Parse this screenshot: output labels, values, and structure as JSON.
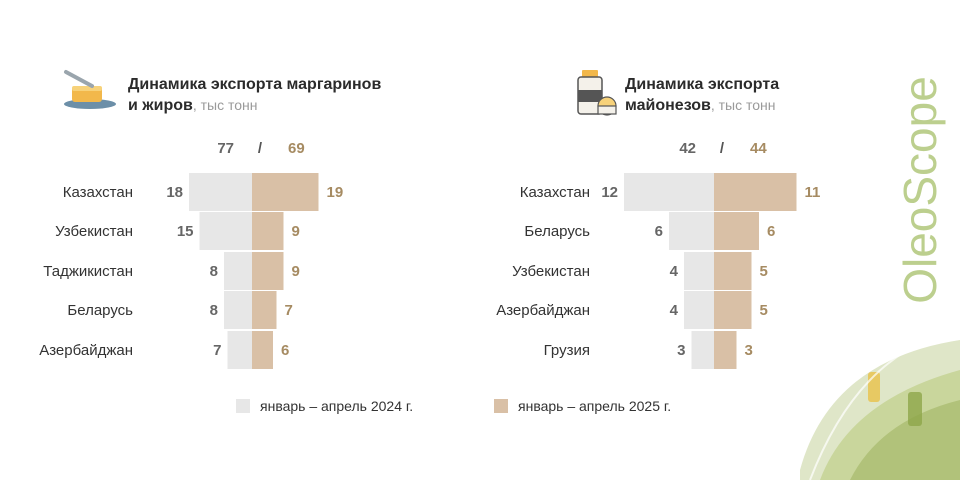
{
  "brand": {
    "name": "OleoScope",
    "color": "#bccf8e"
  },
  "colors": {
    "y2024": "#e7e7e7",
    "y2025": "#d9c0a6",
    "val2024": "#666666",
    "val2025": "#a68b62",
    "labels": "#333333"
  },
  "legend": [
    {
      "label": "январь – апрель 2024 г.",
      "color": "#e7e7e7"
    },
    {
      "label": "январь – апрель 2025 г.",
      "color": "#d9c0a6"
    }
  ],
  "chart_data": [
    {
      "type": "bar",
      "title": "Динамика экспорта маргаринов и жиров",
      "title_line1": "Динамика экспорта маргаринов",
      "title_line2": "и жиров",
      "unit": ", тыс тонн",
      "icon": "butter-dish-icon",
      "totals": {
        "y2024": "77",
        "y2025": "69",
        "separator": "/"
      },
      "categories": [
        "Казахстан",
        "Узбекистан",
        "Таджикистан",
        "Беларусь",
        "Азербайджан"
      ],
      "series": [
        {
          "name": "январь – апрель 2024 г.",
          "values": [
            18,
            15,
            8,
            8,
            7
          ]
        },
        {
          "name": "январь – апрель 2025 г.",
          "values": [
            19,
            9,
            9,
            7,
            6
          ]
        }
      ]
    },
    {
      "type": "bar",
      "title": "Динамика экспорта майонезов",
      "title_line1": "Динамика экспорта",
      "title_line2": "майонезов",
      "unit": ", тыс тонн",
      "icon": "mayonnaise-jar-icon",
      "totals": {
        "y2024": "42",
        "y2025": "44",
        "separator": "/"
      },
      "categories": [
        "Казахстан",
        "Беларусь",
        "Узбекистан",
        "Азербайджан",
        "Грузия"
      ],
      "series": [
        {
          "name": "январь – апрель 2024 г.",
          "values": [
            12,
            6,
            4,
            4,
            3
          ]
        },
        {
          "name": "январь – апрель 2025 г.",
          "values": [
            11,
            6,
            5,
            5,
            3
          ]
        }
      ]
    }
  ]
}
